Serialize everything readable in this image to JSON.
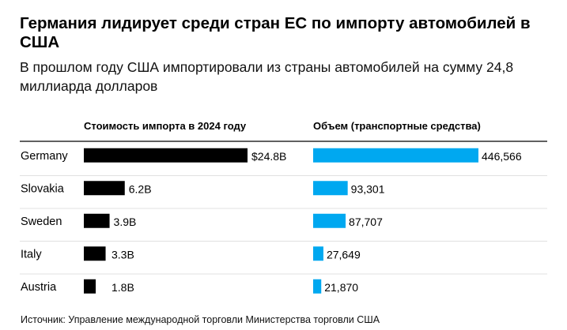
{
  "title": "Германия лидирует среди стран ЕС по импорту автомобилей в США",
  "subtitle": "В прошлом году США импортировали из страны автомобилей на сумму 24,8 миллиарда долларов",
  "source": "Источник: Управление международной торговли Министерства торговли США",
  "colors": {
    "value_bar": "#000000",
    "volume_bar": "#00a8f0",
    "divider": "#000000",
    "row_separator": "#e0e0e0"
  },
  "chart_data": {
    "type": "bar",
    "categories": [
      "Germany",
      "Slovakia",
      "Sweden",
      "Italy",
      "Austria"
    ],
    "series": [
      {
        "name": "Стоимость импорта в 2024 году",
        "values": [
          24.8,
          6.2,
          3.9,
          3.3,
          1.8
        ],
        "labels": [
          "$24.8B",
          "6.2B",
          "3.9B",
          "3.3B",
          "1.8B"
        ]
      },
      {
        "name": "Объем (транспортные средства)",
        "values": [
          446566,
          93301,
          87707,
          27649,
          21870
        ],
        "labels": [
          "446,566",
          "93,301",
          "87,707",
          "27,649",
          "21,870"
        ]
      }
    ],
    "orientation": "horizontal",
    "grid": false
  }
}
